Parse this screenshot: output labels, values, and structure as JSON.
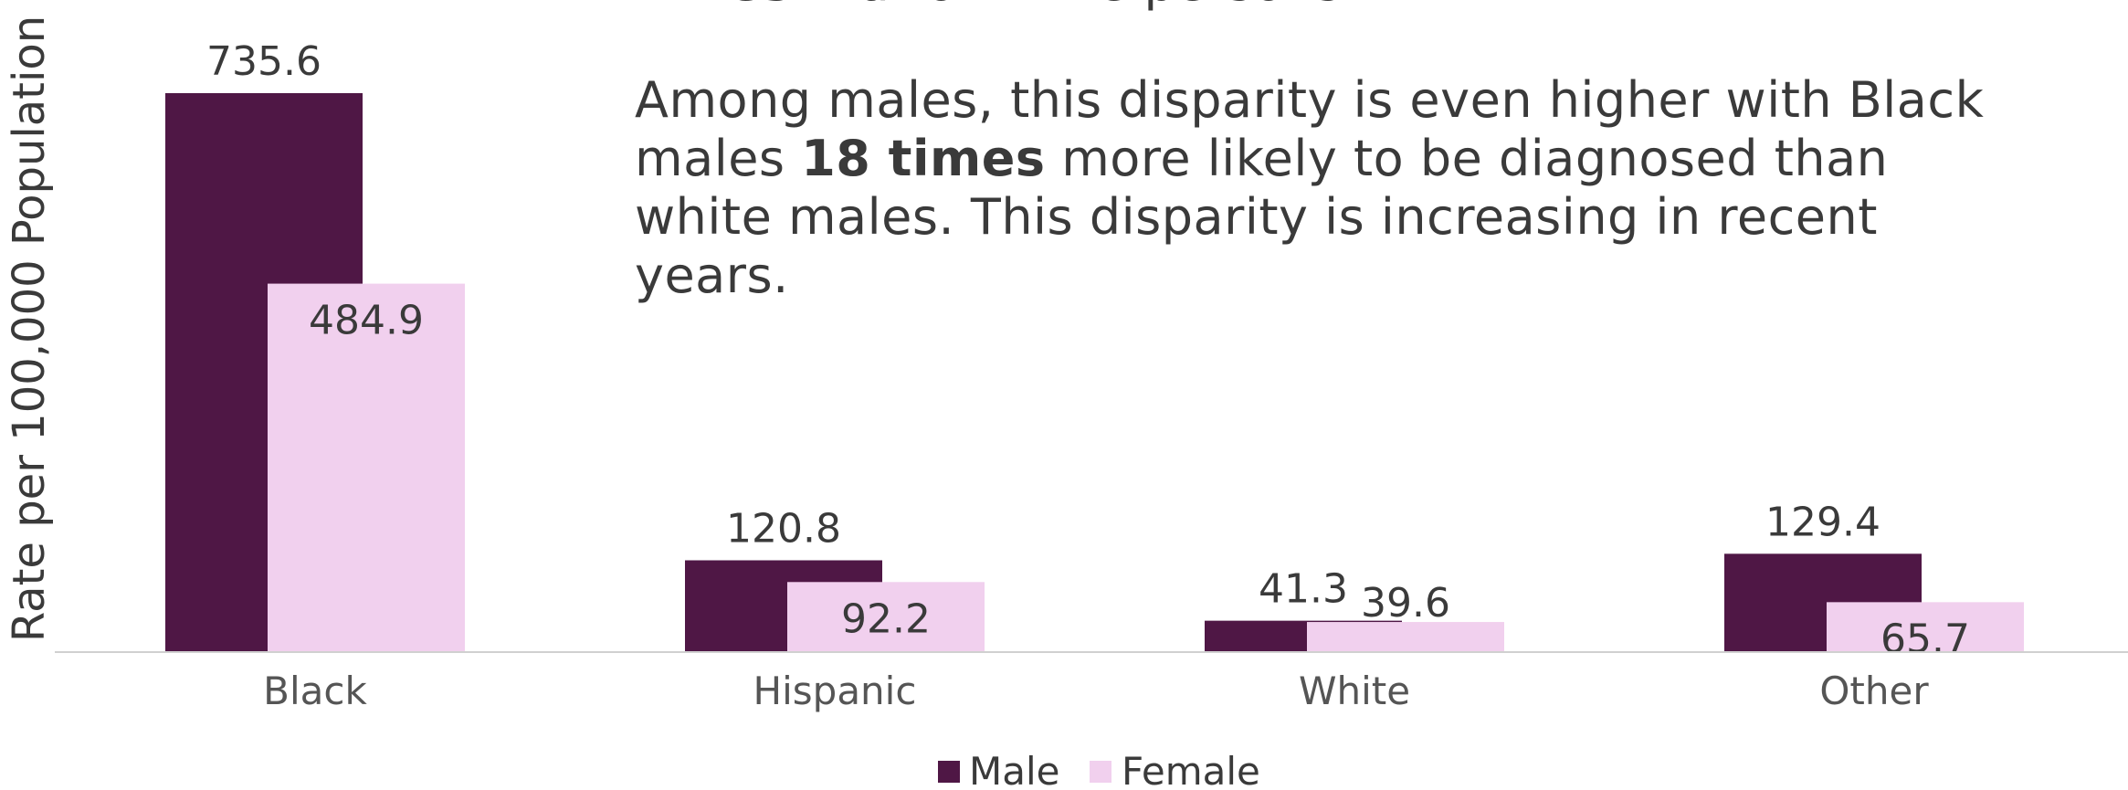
{
  "chart_data": {
    "type": "bar",
    "title": "",
    "xlabel": "",
    "ylabel": "Rate per 100,000 Population",
    "ylim": [
      0,
      800
    ],
    "grid": false,
    "legend_position": "bottom-center",
    "categories": [
      "Black",
      "Hispanic",
      "White",
      "Other"
    ],
    "series": [
      {
        "name": "Male",
        "color": "#4f1745",
        "values": [
          735.6,
          120.8,
          41.3,
          129.4
        ]
      },
      {
        "name": "Female",
        "color": "#f1d0ee",
        "values": [
          484.9,
          92.2,
          39.6,
          65.7
        ]
      }
    ]
  },
  "annotation": {
    "line1_bold": "times",
    "line1_rest": " that of white persons.",
    "para2_a": "Among males, this disparity is even higher with Black males ",
    "para2_bold": "18 times",
    "para2_b": " more likely to be diagnosed than white males. This disparity is increasing in recent years."
  },
  "legend": {
    "male_label": "Male",
    "female_label": "Female"
  }
}
